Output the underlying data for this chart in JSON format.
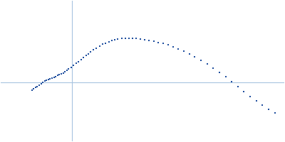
{
  "title": "",
  "xlabel": "",
  "ylabel": "",
  "background_color": "#ffffff",
  "dot_color": "#1f4e9e",
  "axis_color": "#a8c4e0",
  "dot_size": 2.5,
  "x": [
    0.05,
    0.053,
    0.056,
    0.059,
    0.062,
    0.065,
    0.068,
    0.071,
    0.074,
    0.077,
    0.08,
    0.083,
    0.086,
    0.089,
    0.092,
    0.095,
    0.098,
    0.101,
    0.104,
    0.107,
    0.11,
    0.114,
    0.118,
    0.122,
    0.126,
    0.13,
    0.134,
    0.138,
    0.142,
    0.146,
    0.15,
    0.155,
    0.16,
    0.165,
    0.17,
    0.175,
    0.18,
    0.185,
    0.19,
    0.196,
    0.202,
    0.208,
    0.214,
    0.22,
    0.227,
    0.234,
    0.241,
    0.248,
    0.256,
    0.264,
    0.272,
    0.28,
    0.288,
    0.297,
    0.306,
    0.315,
    0.325,
    0.335,
    0.345,
    0.355,
    0.365,
    0.375,
    0.385,
    0.395,
    0.405,
    0.415,
    0.425,
    0.435,
    0.445
  ],
  "y": [
    0.04,
    0.042,
    0.044,
    0.046,
    0.048,
    0.05,
    0.052,
    0.054,
    0.056,
    0.057,
    0.058,
    0.059,
    0.06,
    0.061,
    0.063,
    0.064,
    0.065,
    0.067,
    0.069,
    0.071,
    0.073,
    0.076,
    0.079,
    0.082,
    0.085,
    0.088,
    0.091,
    0.094,
    0.097,
    0.1,
    0.103,
    0.106,
    0.109,
    0.112,
    0.114,
    0.116,
    0.118,
    0.119,
    0.12,
    0.121,
    0.121,
    0.121,
    0.121,
    0.121,
    0.12,
    0.119,
    0.118,
    0.117,
    0.115,
    0.113,
    0.111,
    0.108,
    0.105,
    0.101,
    0.097,
    0.092,
    0.087,
    0.081,
    0.075,
    0.068,
    0.061,
    0.053,
    0.046,
    0.038,
    0.03,
    0.023,
    0.016,
    0.01,
    0.004
  ],
  "xlim": [
    0.0,
    0.46
  ],
  "ylim": [
    -0.04,
    0.18
  ],
  "vline_x": 0.115,
  "hline_y": 0.052
}
